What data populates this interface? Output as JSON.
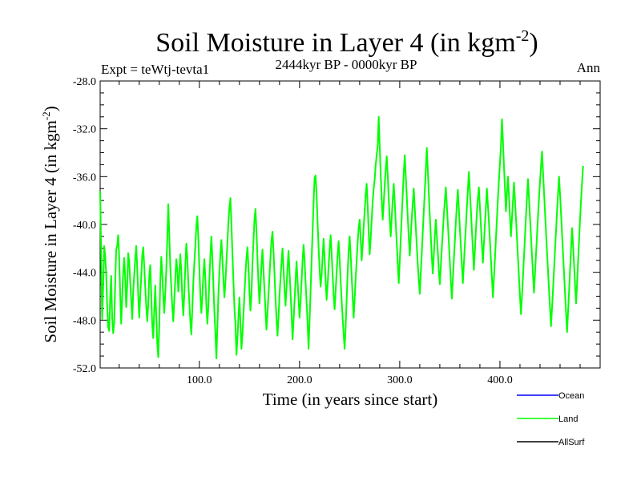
{
  "chart_data": {
    "type": "line",
    "title": "Soil Moisture in Layer 4 (in kgm",
    "title_sup": "-2",
    "title_close": ")",
    "expt_label": "Expt = teWtj-tevta1",
    "period_label": "2444kyr BP - 0000kyr BP",
    "season_label": "Ann",
    "xlabel": "Time (in years since start)",
    "ylabel": "Soil Moisture in Layer 4 (in kgm",
    "ylabel_sup": "-2",
    "ylabel_close": ")",
    "xlim": [
      1,
      500
    ],
    "ylim": [
      -52.0,
      -28.0
    ],
    "x_ticks": [
      100,
      200,
      300,
      400
    ],
    "x_tick_labels": [
      "100.0",
      "200.0",
      "300.0",
      "400.0"
    ],
    "y_ticks": [
      -28,
      -32,
      -36,
      -40,
      -44,
      -48,
      -52
    ],
    "y_tick_labels": [
      "-28.0",
      "-32.0",
      "-36.0",
      "-40.0",
      "-44.0",
      "-48.0",
      "-52.0"
    ],
    "legend": [
      {
        "name": "Ocean",
        "color": "#0000ff"
      },
      {
        "name": "Land",
        "color": "#00ff00"
      },
      {
        "name": "AllSurf",
        "color": "#000000"
      }
    ],
    "series": [
      {
        "name": "Land",
        "color": "#00ff00",
        "x_start": 1,
        "x_step": 1,
        "values": [
          -37.2,
          -42.5,
          -47.9,
          -45.3,
          -41.8,
          -42.6,
          -44.1,
          -46.8,
          -48.6,
          -48.9,
          -46.2,
          -44.3,
          -47.8,
          -49.1,
          -48.2,
          -45.0,
          -42.1,
          -41.8,
          -40.9,
          -42.7,
          -45.8,
          -48.3,
          -46.1,
          -44.0,
          -42.8,
          -44.5,
          -46.9,
          -45.2,
          -42.4,
          -43.1,
          -44.8,
          -46.3,
          -47.9,
          -45.6,
          -44.2,
          -42.9,
          -41.8,
          -43.6,
          -45.9,
          -47.8,
          -46.0,
          -44.4,
          -42.6,
          -41.9,
          -43.5,
          -45.2,
          -46.8,
          -48.1,
          -46.7,
          -44.3,
          -43.4,
          -45.9,
          -48.4,
          -49.5,
          -47.2,
          -45.1,
          -47.6,
          -49.9,
          -51.1,
          -48.5,
          -44.8,
          -42.7,
          -44.2,
          -46.0,
          -47.4,
          -45.7,
          -43.8,
          -41.2,
          -38.3,
          -40.9,
          -43.6,
          -45.2,
          -46.9,
          -48.1,
          -46.3,
          -44.5,
          -42.9,
          -43.8,
          -45.6,
          -44.1,
          -42.5,
          -43.9,
          -46.2,
          -47.6,
          -45.8,
          -43.5,
          -41.6,
          -42.8,
          -44.9,
          -46.5,
          -48.1,
          -49.2,
          -47.0,
          -44.8,
          -43.2,
          -41.8,
          -40.1,
          -39.3,
          -41.2,
          -43.6,
          -45.9,
          -47.4,
          -46.0,
          -44.2,
          -42.9,
          -44.5,
          -46.8,
          -48.3,
          -46.9,
          -44.6,
          -42.6,
          -41.0,
          -42.8,
          -45.0,
          -47.3,
          -49.1,
          -51.2,
          -48.6,
          -45.9,
          -44.0,
          -42.5,
          -41.3,
          -42.9,
          -44.6,
          -46.1,
          -44.9,
          -43.2,
          -41.6,
          -39.8,
          -38.6,
          -37.8,
          -39.9,
          -42.4,
          -44.7,
          -46.9,
          -48.4,
          -50.9,
          -49.6,
          -47.8,
          -46.1,
          -48.2,
          -50.4,
          -49.2,
          -47.6,
          -45.8,
          -44.2,
          -42.8,
          -41.9,
          -43.5,
          -45.6,
          -47.2,
          -45.8,
          -43.3,
          -41.4,
          -39.6,
          -38.7,
          -40.5,
          -42.8,
          -44.9,
          -46.6,
          -45.1,
          -43.4,
          -42.1,
          -43.8,
          -45.5,
          -47.2,
          -48.8,
          -47.4,
          -45.9,
          -44.3,
          -42.7,
          -41.3,
          -40.6,
          -42.2,
          -44.1,
          -46.2,
          -47.9,
          -49.3,
          -47.8,
          -45.9,
          -44.5,
          -43.2,
          -42.0,
          -43.7,
          -45.4,
          -46.8,
          -45.3,
          -43.6,
          -42.2,
          -43.9,
          -45.7,
          -47.4,
          -49.6,
          -48.1,
          -46.4,
          -44.7,
          -43.1,
          -44.6,
          -46.3,
          -47.8,
          -46.5,
          -44.8,
          -43.1,
          -41.7,
          -42.9,
          -44.8,
          -46.5,
          -48.2,
          -50.4,
          -48.1,
          -45.6,
          -43.1,
          -40.6,
          -38.2,
          -36.1,
          -35.9,
          -37.5,
          -39.8,
          -41.9,
          -43.7,
          -45.2,
          -44.3,
          -42.7,
          -41.2,
          -42.8,
          -44.6,
          -46.3,
          -45.1,
          -43.5,
          -42.1,
          -40.9,
          -42.4,
          -44.2,
          -45.9,
          -47.1,
          -45.6,
          -44.0,
          -42.6,
          -41.4,
          -42.9,
          -44.7,
          -46.3,
          -47.8,
          -49.2,
          -50.4,
          -48.6,
          -46.3,
          -44.1,
          -42.2,
          -41.0,
          -42.5,
          -44.3,
          -46.1,
          -47.8,
          -46.2,
          -44.5,
          -43.0,
          -41.5,
          -40.3,
          -39.6,
          -41.1,
          -43.0,
          -41.8,
          -40.2,
          -38.9,
          -37.5,
          -36.6,
          -38.4,
          -40.7,
          -42.5,
          -41.2,
          -39.6,
          -38.1,
          -37.0,
          -36.2,
          -35.0,
          -34.2,
          -33.4,
          -31.0,
          -33.5,
          -35.8,
          -37.9,
          -39.6,
          -38.2,
          -36.7,
          -35.4,
          -34.3,
          -35.9,
          -37.8,
          -39.5,
          -41.0,
          -39.4,
          -37.9,
          -36.6,
          -38.1,
          -39.9,
          -41.5,
          -43.2,
          -44.9,
          -43.1,
          -41.2,
          -39.3,
          -37.5,
          -35.7,
          -34.2,
          -35.9,
          -37.6,
          -39.4,
          -41.1,
          -42.6,
          -41.0,
          -39.5,
          -38.2,
          -37.0,
          -38.6,
          -40.2,
          -41.8,
          -43.3,
          -44.6,
          -45.8,
          -44.1,
          -42.4,
          -40.6,
          -38.9,
          -37.2,
          -35.5,
          -33.6,
          -35.4,
          -37.4,
          -39.2,
          -41.0,
          -42.7,
          -44.1,
          -42.6,
          -41.0,
          -39.6,
          -40.9,
          -42.3,
          -43.8,
          -45.0,
          -43.5,
          -42.0,
          -40.6,
          -39.2,
          -38.0,
          -36.9,
          -38.4,
          -39.9,
          -41.5,
          -43.1,
          -44.7,
          -46.2,
          -44.6,
          -43.0,
          -41.4,
          -39.8,
          -38.3,
          -37.1,
          -38.7,
          -40.3,
          -41.9,
          -43.4,
          -44.9,
          -43.3,
          -41.7,
          -40.2,
          -38.6,
          -37.1,
          -35.6,
          -37.2,
          -38.8,
          -40.5,
          -42.1,
          -43.8,
          -42.2,
          -40.5,
          -39.0,
          -37.8,
          -36.9,
          -38.5,
          -40.1,
          -41.7,
          -43.2,
          -41.6,
          -40.0,
          -38.5,
          -37.0,
          -38.4,
          -39.8,
          -41.3,
          -42.9,
          -44.5,
          -46.1,
          -44.5,
          -42.9,
          -41.2,
          -39.5,
          -37.8,
          -36.3,
          -34.9,
          -33.4,
          -31.2,
          -33.0,
          -35.1,
          -37.0,
          -38.9,
          -37.4,
          -36.0,
          -37.6,
          -39.3,
          -41.0,
          -39.5,
          -38.0,
          -36.5,
          -37.9,
          -39.5,
          -41.1,
          -42.8,
          -44.4,
          -46.0,
          -47.5,
          -46.0,
          -44.4,
          -42.7,
          -41.0,
          -39.3,
          -37.7,
          -36.2,
          -37.8,
          -39.4,
          -41.0,
          -42.6,
          -44.2,
          -45.7,
          -44.1,
          -42.5,
          -40.9,
          -39.3,
          -37.8,
          -36.4,
          -35.1,
          -33.9,
          -35.6,
          -37.3,
          -39.0,
          -40.7,
          -42.3,
          -43.9,
          -45.5,
          -47.0,
          -48.5,
          -47.0,
          -45.4,
          -43.8,
          -42.1,
          -40.5,
          -38.9,
          -37.4,
          -36.0,
          -37.5,
          -39.1,
          -40.8,
          -42.5,
          -44.1,
          -45.8,
          -47.4,
          -49.0,
          -47.3,
          -45.6,
          -43.8,
          -42.0,
          -40.3,
          -41.8,
          -43.4,
          -45.1,
          -46.6,
          -44.9,
          -43.1,
          -41.3,
          -39.5,
          -37.9,
          -36.4,
          -35.1
        ]
      }
    ]
  }
}
